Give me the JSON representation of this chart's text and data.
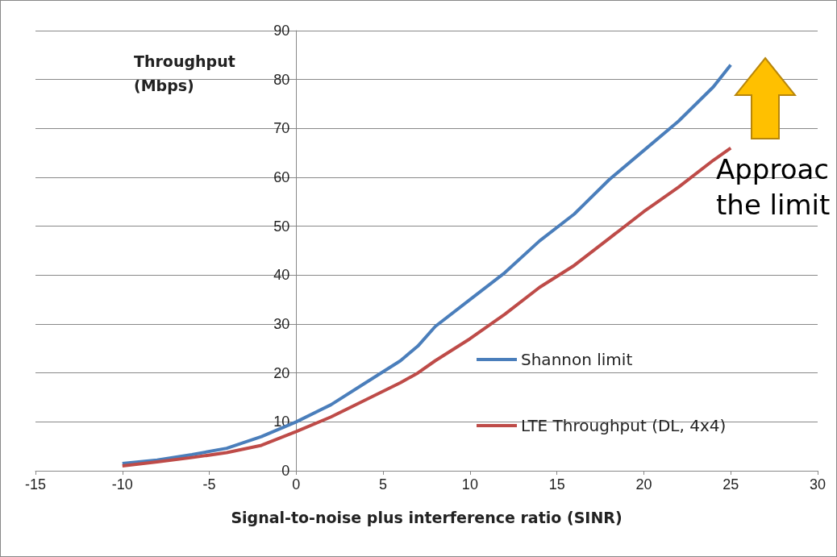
{
  "chart_data": {
    "type": "line",
    "xlabel": "Signal-to-noise plus interference ratio (SINR)",
    "ylabel": "Throughput (Mbps)",
    "annotations": [
      "Approac the limit"
    ],
    "xlim": [
      -15,
      30
    ],
    "xticks": [
      -15,
      -10,
      -5,
      0,
      5,
      10,
      15,
      20,
      25,
      30
    ],
    "ylim": [
      0,
      90
    ],
    "yticks": [
      0,
      10,
      20,
      30,
      40,
      50,
      60,
      70,
      80,
      90
    ],
    "grid": "y",
    "legend": "right",
    "marker": "none",
    "line_style": "solid",
    "x": [
      -10,
      -8,
      -6,
      -4,
      -2,
      0,
      2,
      4,
      6,
      7,
      8,
      10,
      12,
      14,
      16,
      18,
      20,
      22,
      24,
      25
    ],
    "series": [
      {
        "name": "Shannon limit",
        "color": "#4a7ebb",
        "values": [
          1.5,
          2.2,
          3.3,
          4.6,
          7,
          10,
          13.5,
          18,
          22.5,
          25.5,
          29.5,
          35,
          40.5,
          47,
          52.5,
          59.5,
          65.5,
          71.5,
          78.5,
          83
        ]
      },
      {
        "name": "LTE Throughput (DL, 4x4)",
        "color": "#be4b48",
        "values": [
          1,
          1.8,
          2.7,
          3.7,
          5.2,
          8,
          11,
          14.5,
          18,
          20,
          22.5,
          27,
          32,
          37.5,
          42,
          47.5,
          53,
          58,
          63.5,
          66
        ]
      }
    ]
  }
}
